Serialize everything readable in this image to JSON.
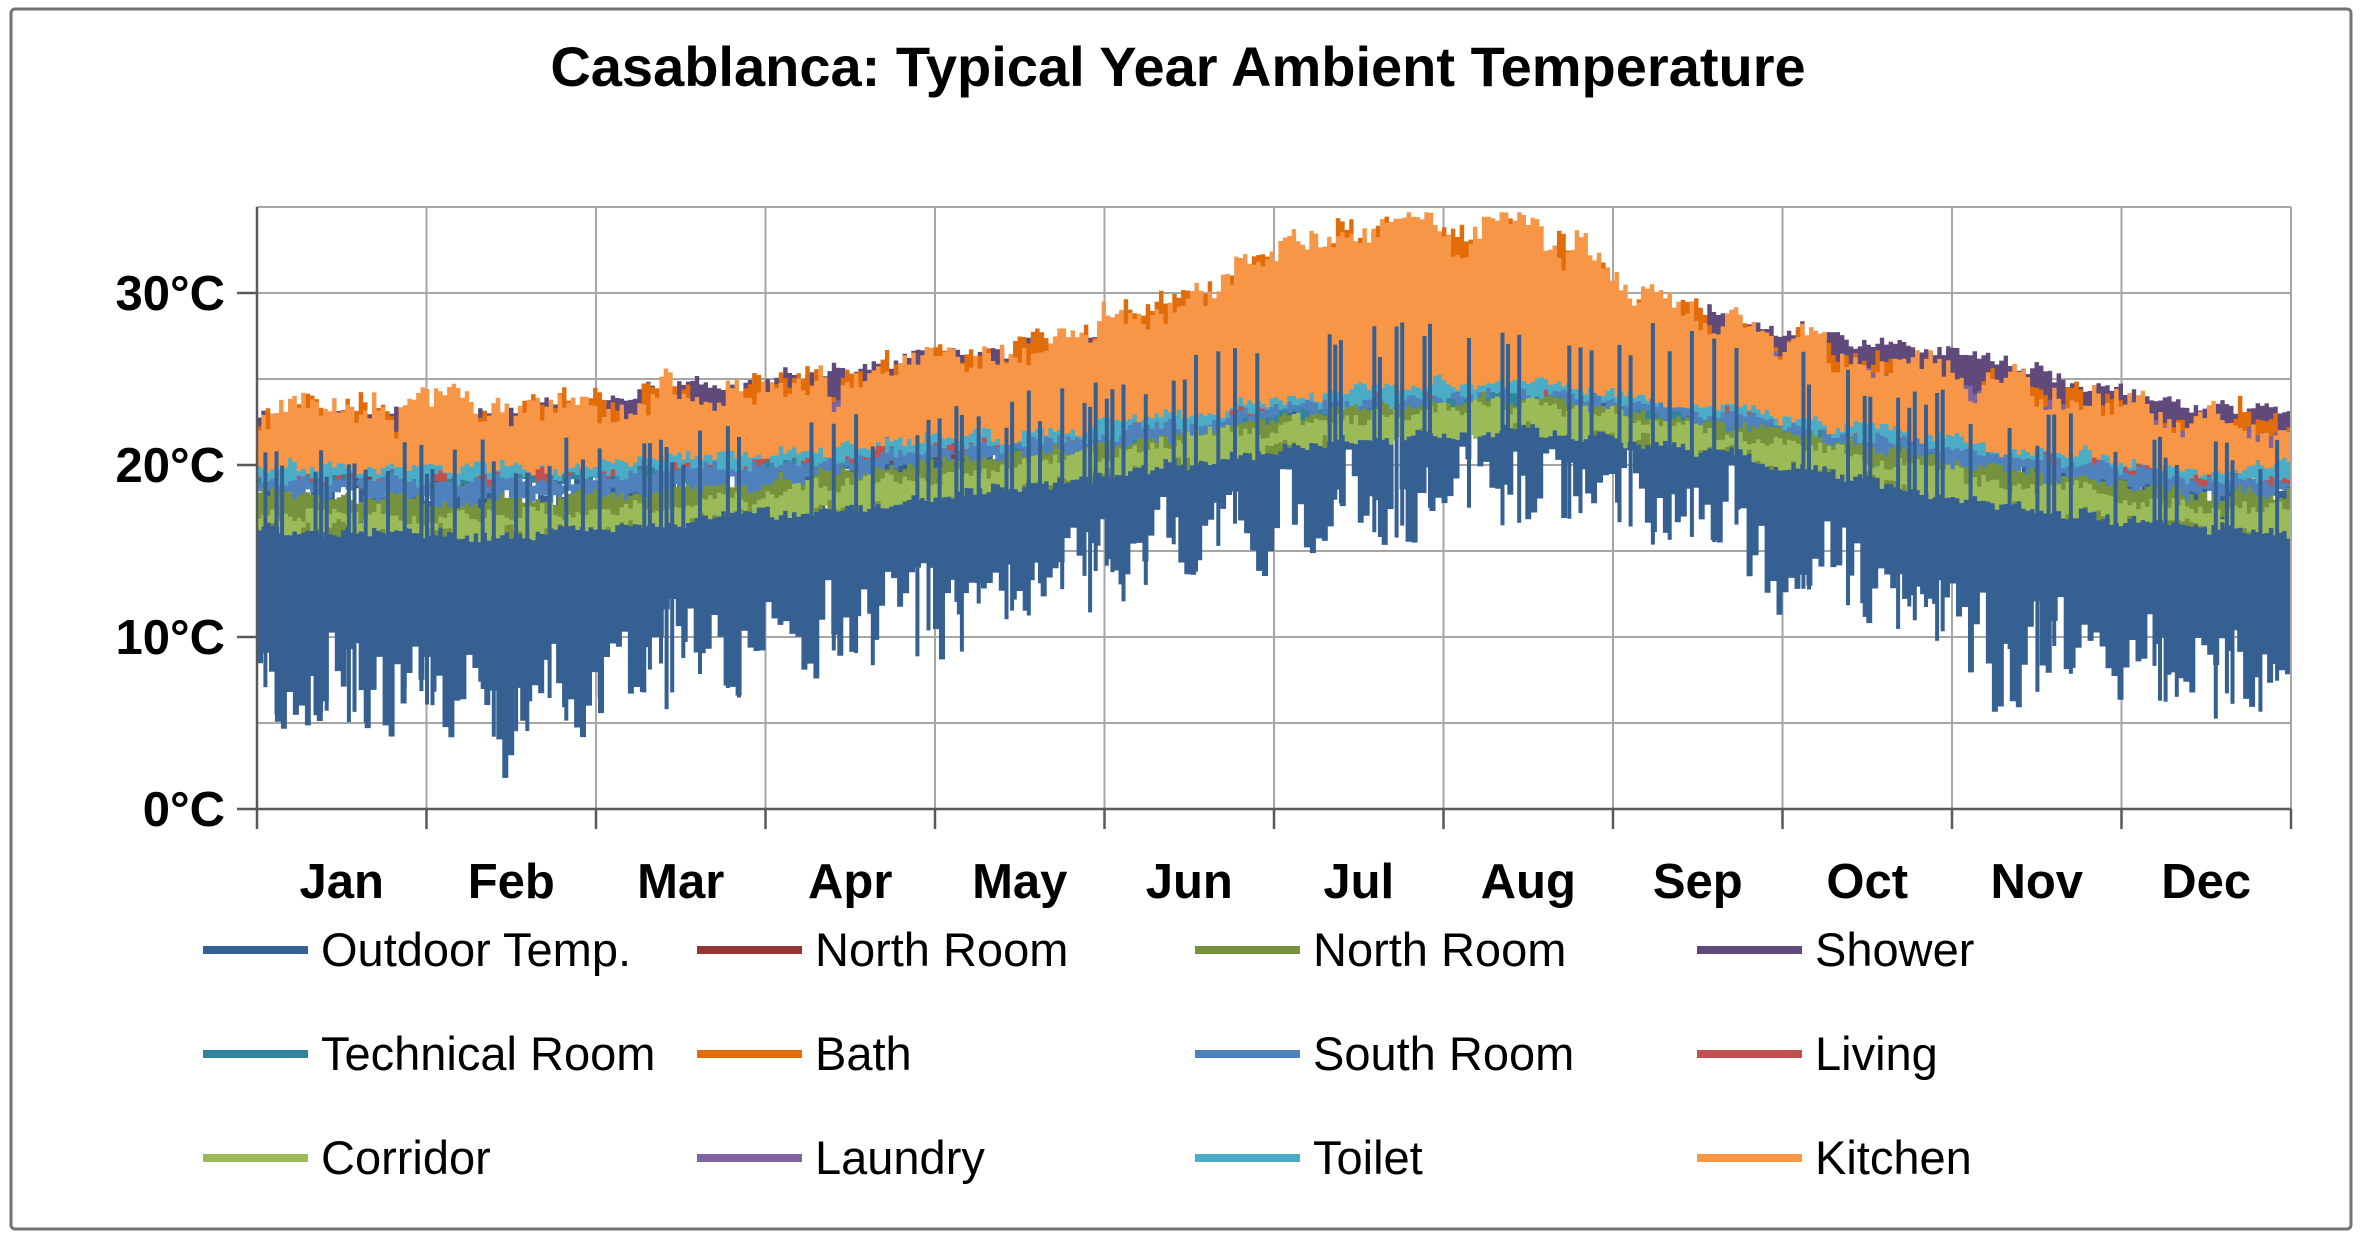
{
  "window": {
    "background": "#FFFFFF",
    "border_color": "#737373"
  },
  "style": {
    "grid_color": "#A6A6A6",
    "axis_color": "#595959",
    "text_color": "#000000"
  },
  "chart_data": {
    "type": "line",
    "title": "Casablanca: Typical Year Ambient Temperature",
    "x_categories": [
      "Jan",
      "Feb",
      "Mar",
      "Apr",
      "May",
      "Jun",
      "Jul",
      "Aug",
      "Sep",
      "Oct",
      "Nov",
      "Dec"
    ],
    "y_axis": {
      "min": 0,
      "max": 35,
      "gridline_step": 5,
      "label_ticks": [
        {
          "value": 30,
          "label": "30°C"
        },
        {
          "value": 20,
          "label": "20°C"
        },
        {
          "value": 10,
          "label": "10°C"
        },
        {
          "value": 0,
          "label": "0°C"
        }
      ]
    },
    "x_gridlines": "month-boundaries",
    "legend": {
      "position": "bottom",
      "rows": 3,
      "columns": 4
    },
    "series_note": "Hourly curves; monthly_high/monthly_low give the typical daily swing envelope (°C) read from the plot for each month Jan-Dec.",
    "series": [
      {
        "name": "Outdoor Temp.",
        "color": "#366092",
        "volatile": true,
        "monthly_high": [
          18.5,
          18.5,
          19.0,
          20.0,
          21.5,
          23.5,
          25.5,
          26.5,
          25.0,
          23.0,
          20.5,
          19.0
        ],
        "monthly_low": [
          7.5,
          7.0,
          9.0,
          10.5,
          13.0,
          16.0,
          18.5,
          19.5,
          17.5,
          13.5,
          10.0,
          8.0
        ]
      },
      {
        "name": "North Room",
        "color": "#943634",
        "monthly_high": [
          20.8,
          21.0,
          21.7,
          22.8,
          23.8,
          25.2,
          26.5,
          26.9,
          25.7,
          24.1,
          22.4,
          20.9
        ],
        "monthly_low": [
          18.9,
          19.0,
          19.5,
          20.3,
          21.1,
          22.4,
          23.8,
          24.2,
          23.2,
          21.7,
          20.3,
          19.0
        ]
      },
      {
        "name": "North Room",
        "color": "#76923C",
        "monthly_high": [
          18.3,
          18.1,
          18.9,
          19.9,
          21.0,
          22.5,
          24.0,
          24.5,
          23.2,
          21.5,
          19.8,
          18.4
        ],
        "monthly_low": [
          16.4,
          16.2,
          16.9,
          17.8,
          18.9,
          20.3,
          21.8,
          22.3,
          21.1,
          19.4,
          17.7,
          16.5
        ]
      },
      {
        "name": "Shower",
        "color": "#604A7B",
        "monthly_high": [
          23.0,
          23.2,
          24.4,
          25.6,
          26.8,
          27.5,
          28.2,
          28.5,
          28.8,
          27.2,
          25.5,
          23.2
        ],
        "monthly_low": [
          20.5,
          20.6,
          21.2,
          22.0,
          22.8,
          24.0,
          25.5,
          26.0,
          24.8,
          23.2,
          21.8,
          20.6
        ]
      },
      {
        "name": "Technical Room",
        "color": "#31849B",
        "monthly_high": [
          20.3,
          20.4,
          21.0,
          21.8,
          22.6,
          23.8,
          25.0,
          25.4,
          24.4,
          23.0,
          21.6,
          20.4
        ],
        "monthly_low": [
          19.0,
          19.0,
          19.5,
          20.2,
          21.0,
          22.2,
          23.4,
          23.8,
          22.9,
          21.6,
          20.2,
          19.1
        ]
      },
      {
        "name": "Bath",
        "color": "#E36C0A",
        "monthly_high": [
          22.8,
          23.0,
          23.8,
          24.8,
          26.8,
          29.8,
          33.3,
          33.6,
          28.3,
          25.8,
          24.3,
          22.3
        ],
        "monthly_low": [
          20.0,
          20.0,
          20.5,
          21.2,
          22.0,
          23.2,
          24.8,
          25.2,
          23.8,
          22.2,
          21.0,
          20.0
        ]
      },
      {
        "name": "South Room",
        "color": "#4F81BD",
        "monthly_high": [
          19.5,
          19.3,
          20.0,
          21.2,
          22.3,
          23.9,
          25.7,
          26.3,
          24.7,
          22.9,
          21.1,
          19.6
        ],
        "monthly_low": [
          18.2,
          18.0,
          18.6,
          19.5,
          20.5,
          21.9,
          23.4,
          24.0,
          22.7,
          21.0,
          19.3,
          18.3
        ]
      },
      {
        "name": "Living",
        "color": "#C0504D",
        "monthly_high": [
          21.2,
          21.4,
          22.2,
          23.3,
          24.3,
          25.8,
          27.0,
          27.4,
          26.2,
          24.6,
          22.9,
          21.3
        ],
        "monthly_low": [
          19.3,
          19.4,
          19.9,
          20.7,
          21.5,
          22.8,
          24.2,
          24.6,
          23.6,
          22.1,
          20.7,
          19.4
        ]
      },
      {
        "name": "Corridor",
        "color": "#9BBB59",
        "monthly_high": [
          17.2,
          17.0,
          17.8,
          18.8,
          19.9,
          21.4,
          23.0,
          23.5,
          22.1,
          20.4,
          18.7,
          17.3
        ],
        "monthly_low": [
          16.2,
          16.0,
          16.7,
          17.6,
          18.6,
          20.1,
          21.6,
          22.1,
          20.9,
          19.2,
          17.5,
          16.3
        ]
      },
      {
        "name": "Laundry",
        "color": "#8064A2",
        "monthly_high": [
          21.5,
          21.7,
          22.5,
          23.8,
          24.8,
          26.2,
          27.3,
          27.6,
          26.8,
          25.2,
          23.5,
          21.6
        ],
        "monthly_low": [
          19.8,
          19.9,
          20.4,
          21.2,
          22.0,
          23.2,
          24.6,
          25.0,
          24.0,
          22.6,
          21.2,
          19.9
        ]
      },
      {
        "name": "Toilet",
        "color": "#4BACC6",
        "monthly_high": [
          20.6,
          20.7,
          21.3,
          22.1,
          23.0,
          24.2,
          25.4,
          25.8,
          24.8,
          23.3,
          21.9,
          20.7
        ],
        "monthly_low": [
          19.2,
          19.3,
          19.8,
          20.5,
          21.3,
          22.5,
          23.7,
          24.1,
          23.2,
          21.8,
          20.4,
          19.3
        ]
      },
      {
        "name": "Kitchen",
        "color": "#F79646",
        "monthly_high": [
          23.0,
          23.2,
          24.0,
          24.8,
          27.0,
          30.0,
          33.5,
          33.8,
          28.5,
          26.0,
          24.5,
          22.5
        ],
        "monthly_low": [
          19.8,
          19.8,
          20.3,
          21.0,
          21.8,
          23.0,
          24.5,
          25.0,
          23.5,
          22.0,
          20.8,
          19.8
        ]
      }
    ]
  }
}
